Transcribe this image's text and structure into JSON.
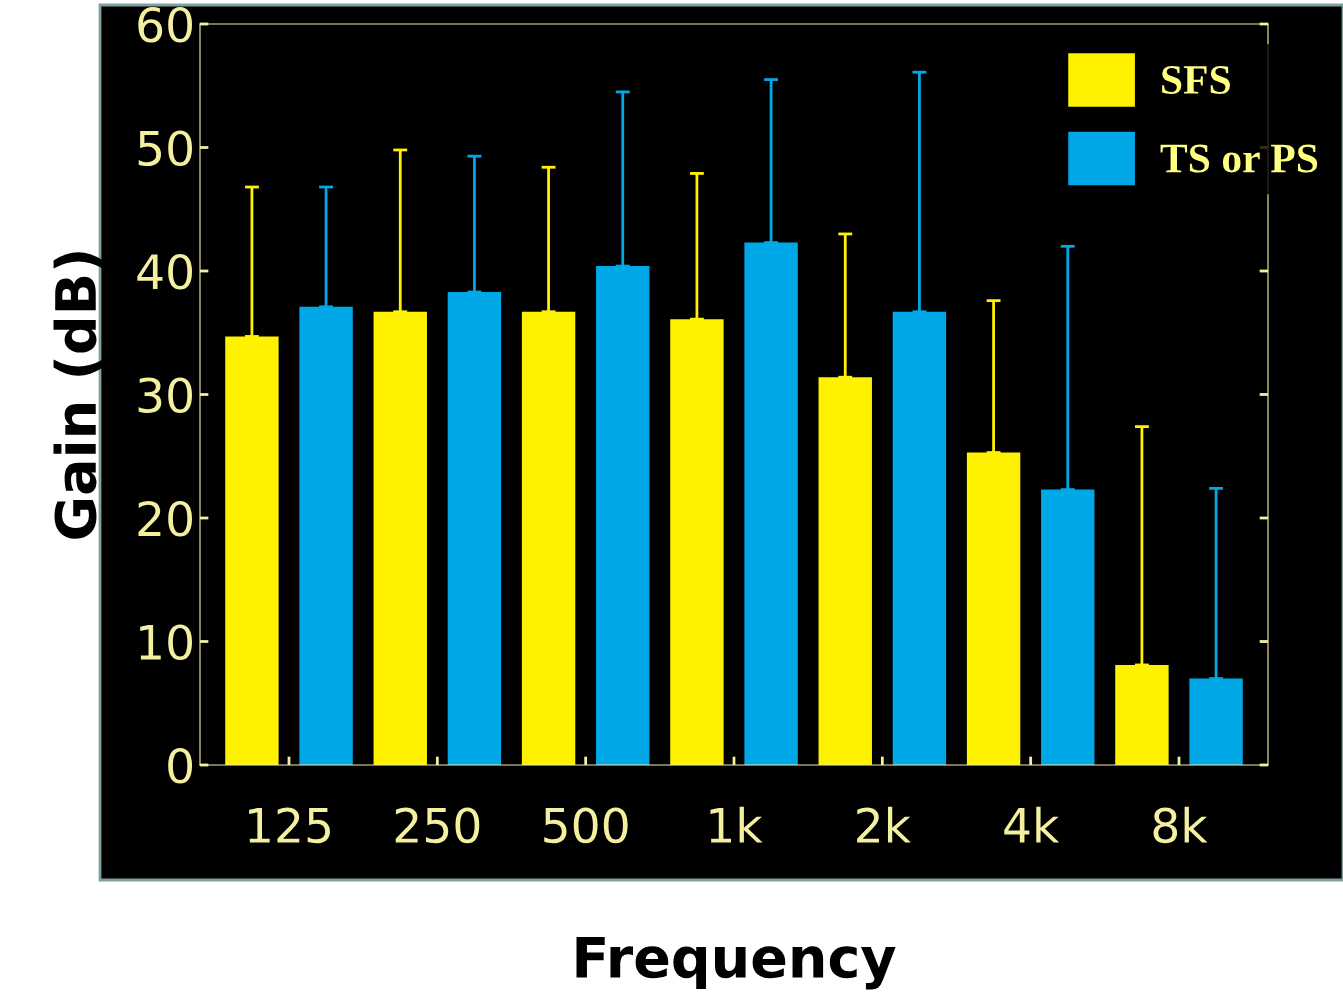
{
  "chart_data": {
    "type": "bar",
    "xlabel": "Frequency",
    "ylabel": "Gain (dB)",
    "categories": [
      "125",
      "250",
      "500",
      "1k",
      "2k",
      "4k",
      "8k"
    ],
    "series": [
      {
        "name": "SFS",
        "color": "#fff200",
        "values": [
          34.7,
          36.7,
          36.7,
          36.1,
          31.4,
          25.3,
          8.1
        ],
        "errors": [
          [
            34.7,
            46.8
          ],
          [
            36.7,
            49.8
          ],
          [
            36.7,
            48.4
          ],
          [
            36.1,
            47.9
          ],
          [
            31.4,
            43.0
          ],
          [
            25.3,
            37.6
          ],
          [
            8.1,
            27.4
          ]
        ]
      },
      {
        "name": "TS or PS",
        "color": "#00a8e8",
        "values": [
          37.1,
          38.3,
          40.4,
          42.3,
          36.7,
          22.3,
          7.0
        ],
        "errors": [
          [
            37.1,
            46.8
          ],
          [
            38.3,
            49.3
          ],
          [
            40.4,
            54.5
          ],
          [
            42.3,
            55.5
          ],
          [
            36.7,
            56.1
          ],
          [
            22.3,
            42.0
          ],
          [
            7.0,
            22.4
          ]
        ]
      }
    ],
    "ylim": [
      0,
      60
    ],
    "yticks": [
      0,
      10,
      20,
      30,
      40,
      50,
      60
    ],
    "grid": false,
    "legend": "top right"
  }
}
